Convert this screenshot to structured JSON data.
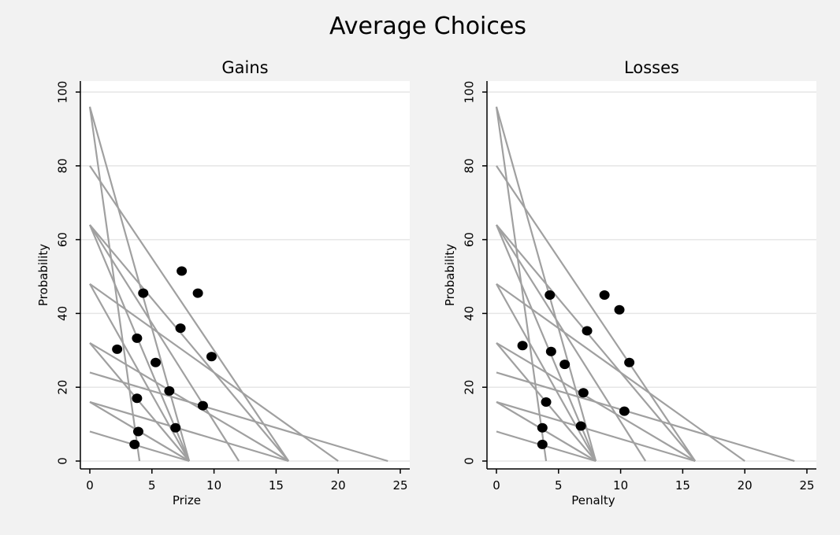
{
  "chart_data": {
    "title": "Average Choices",
    "panels": [
      {
        "title": "Gains",
        "type": "scatter",
        "xlabel": "Prize",
        "ylabel": "Probability",
        "xlim": [
          0,
          25
        ],
        "ylim": [
          0,
          100
        ],
        "xticks": [
          "0",
          "5",
          "10",
          "15",
          "20",
          "25"
        ],
        "yticks": [
          "0",
          "20",
          "40",
          "60",
          "80",
          "100"
        ],
        "grid": "horizontal",
        "budget_lines": [
          {
            "x0": 0,
            "y0": 96,
            "x1": 4
          },
          {
            "x0": 0,
            "y0": 96,
            "x1": 8
          },
          {
            "x0": 0,
            "y0": 80,
            "x1": 16
          },
          {
            "x0": 0,
            "y0": 64,
            "x1": 8
          },
          {
            "x0": 0,
            "y0": 64,
            "x1": 12
          },
          {
            "x0": 0,
            "y0": 64,
            "x1": 16
          },
          {
            "x0": 0,
            "y0": 48,
            "x1": 8
          },
          {
            "x0": 0,
            "y0": 48,
            "x1": 20
          },
          {
            "x0": 0,
            "y0": 32,
            "x1": 8
          },
          {
            "x0": 0,
            "y0": 32,
            "x1": 16
          },
          {
            "x0": 0,
            "y0": 24,
            "x1": 24
          },
          {
            "x0": 0,
            "y0": 16,
            "x1": 8
          },
          {
            "x0": 0,
            "y0": 16,
            "x1": 16
          },
          {
            "x0": 0,
            "y0": 8,
            "x1": 8
          }
        ],
        "points": [
          {
            "x": 7.4,
            "y": 51.5
          },
          {
            "x": 4.3,
            "y": 45.5
          },
          {
            "x": 8.7,
            "y": 45.5
          },
          {
            "x": 7.3,
            "y": 36
          },
          {
            "x": 3.8,
            "y": 33.3
          },
          {
            "x": 2.2,
            "y": 30.3
          },
          {
            "x": 9.8,
            "y": 28.3
          },
          {
            "x": 5.3,
            "y": 26.7
          },
          {
            "x": 6.4,
            "y": 19
          },
          {
            "x": 3.8,
            "y": 17
          },
          {
            "x": 9.1,
            "y": 15
          },
          {
            "x": 6.9,
            "y": 9
          },
          {
            "x": 3.9,
            "y": 8
          },
          {
            "x": 3.6,
            "y": 4.5
          }
        ]
      },
      {
        "title": "Losses",
        "type": "scatter",
        "xlabel": "Penalty",
        "ylabel": "Probability",
        "xlim": [
          0,
          25
        ],
        "ylim": [
          0,
          100
        ],
        "xticks": [
          "0",
          "5",
          "10",
          "15",
          "20",
          "25"
        ],
        "yticks": [
          "0",
          "20",
          "40",
          "60",
          "80",
          "100"
        ],
        "grid": "horizontal",
        "budget_lines": [
          {
            "x0": 0,
            "y0": 96,
            "x1": 4
          },
          {
            "x0": 0,
            "y0": 96,
            "x1": 8
          },
          {
            "x0": 0,
            "y0": 80,
            "x1": 16
          },
          {
            "x0": 0,
            "y0": 64,
            "x1": 8
          },
          {
            "x0": 0,
            "y0": 64,
            "x1": 12
          },
          {
            "x0": 0,
            "y0": 64,
            "x1": 16
          },
          {
            "x0": 0,
            "y0": 48,
            "x1": 8
          },
          {
            "x0": 0,
            "y0": 48,
            "x1": 20
          },
          {
            "x0": 0,
            "y0": 32,
            "x1": 8
          },
          {
            "x0": 0,
            "y0": 32,
            "x1": 16
          },
          {
            "x0": 0,
            "y0": 24,
            "x1": 24
          },
          {
            "x0": 0,
            "y0": 16,
            "x1": 8
          },
          {
            "x0": 0,
            "y0": 16,
            "x1": 16
          },
          {
            "x0": 0,
            "y0": 8,
            "x1": 8
          }
        ],
        "points": [
          {
            "x": 4.3,
            "y": 45
          },
          {
            "x": 8.7,
            "y": 45
          },
          {
            "x": 9.9,
            "y": 41
          },
          {
            "x": 7.3,
            "y": 35.3
          },
          {
            "x": 2.1,
            "y": 31.3
          },
          {
            "x": 4.4,
            "y": 29.7
          },
          {
            "x": 5.5,
            "y": 26.2
          },
          {
            "x": 10.7,
            "y": 26.7
          },
          {
            "x": 7,
            "y": 18.5
          },
          {
            "x": 4,
            "y": 16
          },
          {
            "x": 10.3,
            "y": 13.5
          },
          {
            "x": 6.8,
            "y": 9.5
          },
          {
            "x": 3.7,
            "y": 9
          },
          {
            "x": 3.7,
            "y": 4.5
          }
        ]
      }
    ],
    "colors": {
      "background": "#f2f2f2",
      "plot_background": "#ffffff",
      "gridline": "#e6e6e6",
      "budget_line": "#a0a0a0",
      "point": "#000000"
    }
  }
}
